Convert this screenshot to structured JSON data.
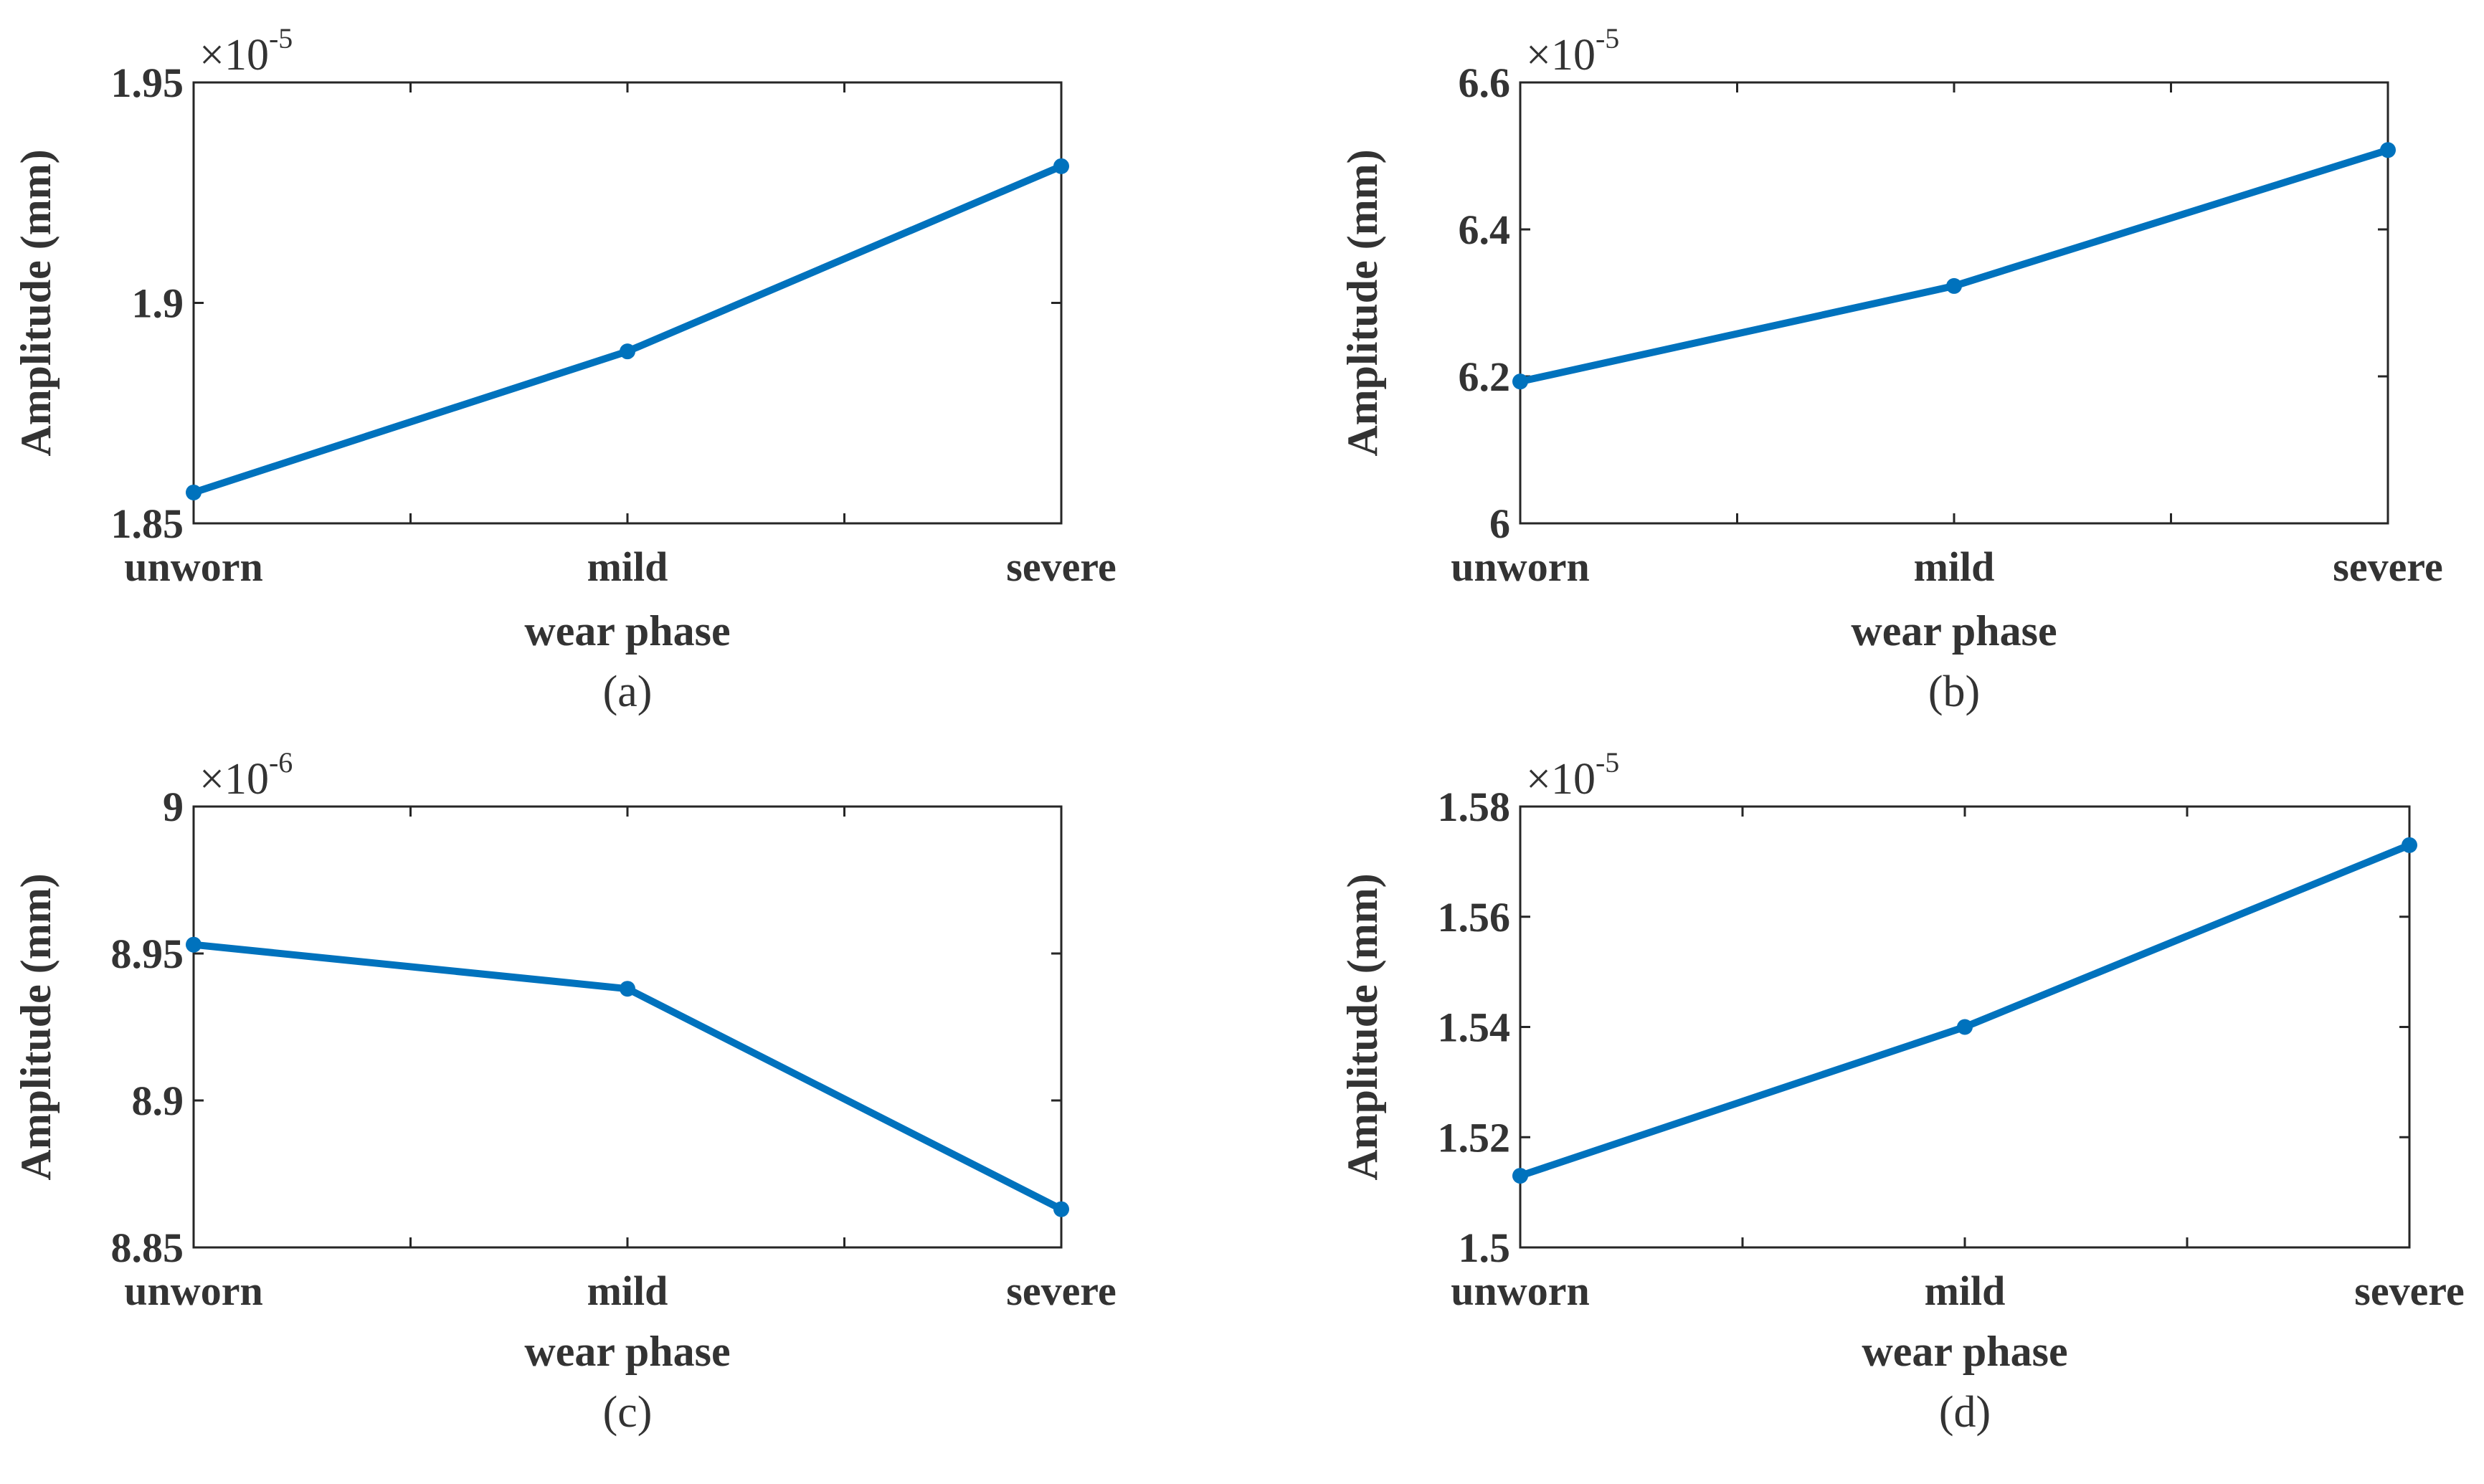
{
  "chart_data": [
    {
      "type": "line",
      "caption": "(a)",
      "xlabel": "wear phase",
      "ylabel": "Amplitude  (mm)",
      "multiplier_base": "×10",
      "multiplier_exp": "-5",
      "categories": [
        "unworn",
        "mild",
        "severe"
      ],
      "series": [
        {
          "name": "amplitude",
          "values": [
            1.857,
            1.889,
            1.931
          ]
        }
      ],
      "ylim": [
        1.85,
        1.95
      ],
      "yticks": [
        1.85,
        1.9,
        1.95
      ],
      "ytick_labels": [
        "1.85",
        "1.9",
        "1.95"
      ],
      "color": "#0072BD"
    },
    {
      "type": "line",
      "caption": "(b)",
      "xlabel": "wear phase",
      "ylabel": "Amplitude  (mm)",
      "multiplier_base": "×10",
      "multiplier_exp": "-5",
      "categories": [
        "unworn",
        "mild",
        "severe"
      ],
      "series": [
        {
          "name": "amplitude",
          "values": [
            6.193,
            6.323,
            6.508
          ]
        }
      ],
      "ylim": [
        6.0,
        6.6
      ],
      "yticks": [
        6.0,
        6.2,
        6.4,
        6.6
      ],
      "ytick_labels": [
        "6",
        "6.2",
        "6.4",
        "6.6"
      ],
      "color": "#0072BD"
    },
    {
      "type": "line",
      "caption": "(c)",
      "xlabel": "wear phase",
      "ylabel": "Amplitude  (mm)",
      "multiplier_base": "×10",
      "multiplier_exp": "-6",
      "categories": [
        "unworn",
        "mild",
        "severe"
      ],
      "series": [
        {
          "name": "amplitude",
          "values": [
            8.953,
            8.938,
            8.863
          ]
        }
      ],
      "ylim": [
        8.85,
        9.0
      ],
      "yticks": [
        8.85,
        8.9,
        8.95,
        9.0
      ],
      "ytick_labels": [
        "8.85",
        "8.9",
        "8.95",
        "9"
      ],
      "color": "#0072BD"
    },
    {
      "type": "line",
      "caption": "(d)",
      "xlabel": "wear phase",
      "ylabel": "Amplitude  (mm)",
      "multiplier_base": "×10",
      "multiplier_exp": "-5",
      "categories": [
        "unworn",
        "mild",
        "severe"
      ],
      "series": [
        {
          "name": "amplitude",
          "values": [
            1.513,
            1.54,
            1.573
          ]
        }
      ],
      "ylim": [
        1.5,
        1.58
      ],
      "yticks": [
        1.5,
        1.52,
        1.54,
        1.56,
        1.58
      ],
      "ytick_labels": [
        "1.5",
        "1.52",
        "1.54",
        "1.56",
        "1.58"
      ],
      "color": "#0072BD"
    }
  ]
}
